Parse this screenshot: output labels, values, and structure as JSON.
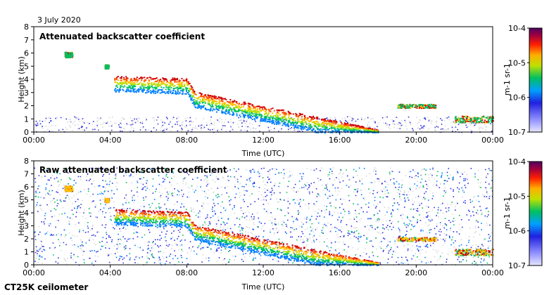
{
  "header": {
    "date": "3 July 2020"
  },
  "footer": {
    "instrument": "CT25K ceilometer"
  },
  "chart_data": [
    {
      "type": "heatmap",
      "title": "Attenuated backscatter coefficient",
      "xlabel": "Time (UTC)",
      "ylabel": "Height (km)",
      "xlim": [
        0,
        24
      ],
      "ylim": [
        0,
        8
      ],
      "xticks": [
        0,
        4,
        8,
        12,
        16,
        20,
        24
      ],
      "xtick_labels": [
        "00:00",
        "04:00",
        "08:00",
        "12:00",
        "16:00",
        "20:00",
        "00:00"
      ],
      "yticks": [
        0,
        1,
        2,
        3,
        4,
        5,
        6,
        7,
        8
      ],
      "ytick_labels": [
        "0",
        "1",
        "2",
        "3",
        "4",
        "5",
        "6",
        "7",
        "8"
      ],
      "colorbar": {
        "scale": "log",
        "min": 1e-07,
        "max": 0.0001,
        "labels": [
          "10-7",
          "10-6",
          "10-5",
          "10-4"
        ],
        "unit": "m-1 sr-1"
      },
      "features": [
        {
          "name": "mid-level cloud",
          "time": [
            1.6,
            2.0
          ],
          "height": 5.9
        },
        {
          "name": "cloud",
          "time": [
            3.7,
            3.9
          ],
          "height": 5.0
        },
        {
          "name": "descending layer",
          "time": [
            4.2,
            18.0
          ],
          "height_start": 4.3,
          "height_end": 0.2
        },
        {
          "name": "boundary layer cloud",
          "time": [
            19.0,
            21.0
          ],
          "height": 2.0
        },
        {
          "name": "low cloud",
          "time": [
            22.0,
            24.0
          ],
          "height": 1.0
        }
      ]
    },
    {
      "type": "heatmap",
      "title": "Raw attenuated backscatter coefficient",
      "xlabel": "Time (UTC)",
      "ylabel": "Height (km)",
      "xlim": [
        0,
        24
      ],
      "ylim": [
        0,
        8
      ],
      "xticks": [
        0,
        4,
        8,
        12,
        16,
        20,
        24
      ],
      "xtick_labels": [
        "00:00",
        "04:00",
        "08:00",
        "12:00",
        "16:00",
        "20:00",
        "00:00"
      ],
      "yticks": [
        0,
        1,
        2,
        3,
        4,
        5,
        6,
        7,
        8
      ],
      "ytick_labels": [
        "0",
        "1",
        "2",
        "3",
        "4",
        "5",
        "6",
        "7",
        "8"
      ],
      "colorbar": {
        "scale": "log",
        "min": 1e-07,
        "max": 0.0001,
        "labels": [
          "10-7",
          "10-6",
          "10-5",
          "10-4"
        ],
        "unit": "m-1 sr-1"
      },
      "features": [
        {
          "name": "noise background",
          "time": [
            0,
            24
          ],
          "height": [
            0,
            7.5
          ]
        },
        {
          "name": "descending layer",
          "time": [
            4.2,
            18.0
          ],
          "height_start": 4.3,
          "height_end": 0.2
        }
      ]
    }
  ]
}
